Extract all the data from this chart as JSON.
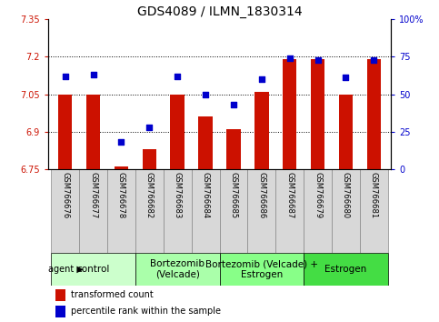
{
  "title": "GDS4089 / ILMN_1830314",
  "samples": [
    "GSM766676",
    "GSM766677",
    "GSM766678",
    "GSM766682",
    "GSM766683",
    "GSM766684",
    "GSM766685",
    "GSM766686",
    "GSM766687",
    "GSM766679",
    "GSM766680",
    "GSM766681"
  ],
  "bar_values": [
    7.05,
    7.05,
    6.76,
    6.83,
    7.05,
    6.96,
    6.91,
    7.06,
    7.19,
    7.19,
    7.05,
    7.19
  ],
  "dot_values": [
    62,
    63,
    18,
    28,
    62,
    50,
    43,
    60,
    74,
    73,
    61,
    73
  ],
  "bar_bottom": 6.75,
  "ylim_left": [
    6.75,
    7.35
  ],
  "ylim_right": [
    0,
    100
  ],
  "yticks_left": [
    6.75,
    6.9,
    7.05,
    7.2,
    7.35
  ],
  "yticks_right": [
    0,
    25,
    50,
    75,
    100
  ],
  "ytick_labels_right": [
    "0",
    "25",
    "50",
    "75",
    "100%"
  ],
  "hlines": [
    6.9,
    7.05,
    7.2
  ],
  "bar_color": "#cc1100",
  "dot_color": "#0000cc",
  "groups": [
    {
      "label": "control",
      "start": 0,
      "end": 3,
      "color": "#ccffcc"
    },
    {
      "label": "Bortezomib\n(Velcade)",
      "start": 3,
      "end": 6,
      "color": "#aaffaa"
    },
    {
      "label": "Bortezomib (Velcade) +\nEstrogen",
      "start": 6,
      "end": 9,
      "color": "#88ff88"
    },
    {
      "label": "Estrogen",
      "start": 9,
      "end": 12,
      "color": "#44dd44"
    }
  ],
  "agent_label": "agent",
  "legend_bar_label": "transformed count",
  "legend_dot_label": "percentile rank within the sample",
  "title_fontsize": 10,
  "tick_fontsize": 7,
  "group_fontsize": 7.5,
  "sample_fontsize": 6,
  "legend_fontsize": 7
}
